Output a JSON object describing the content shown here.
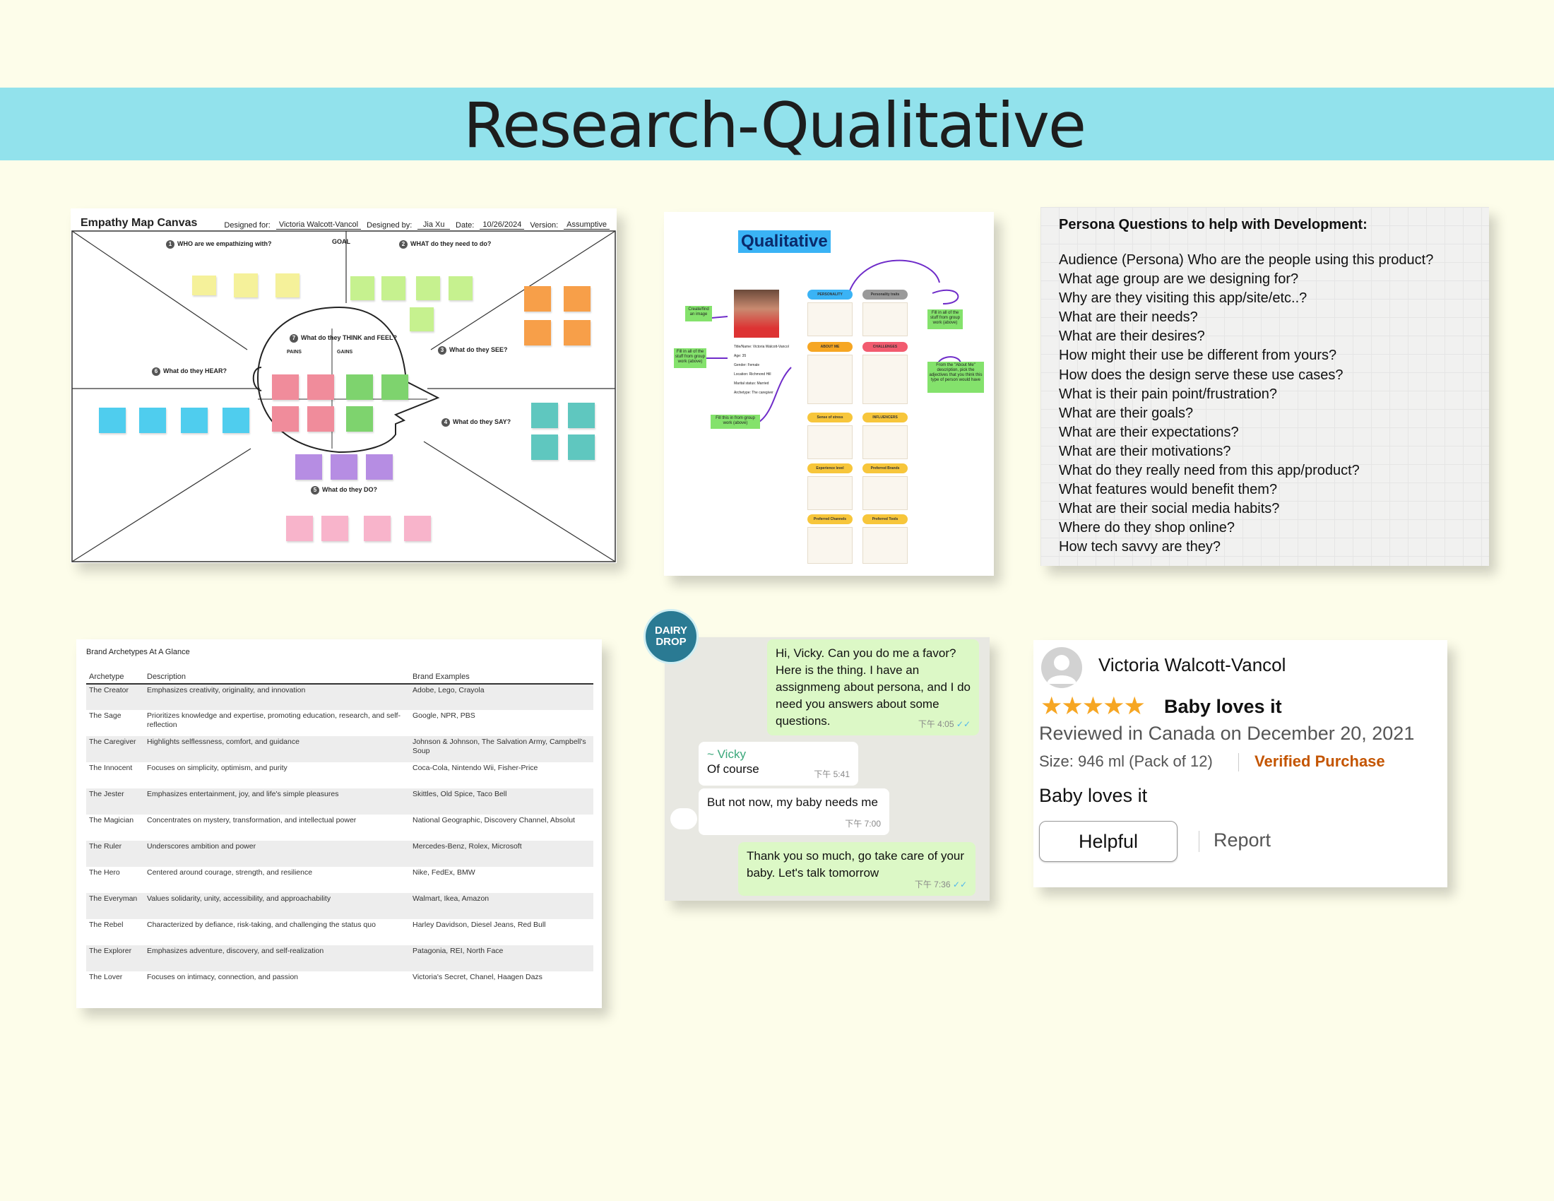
{
  "title": "Research-Qualitative",
  "empathy_map": {
    "title": "Empathy Map Canvas",
    "designed_for_label": "Designed for:",
    "designed_for": "Victoria Walcott-Vancol",
    "designed_by_label": "Designed by:",
    "designed_by": "Jia Xu",
    "date_label": "Date:",
    "date": "10/26/2024",
    "version_label": "Version:",
    "version": "Assumptive",
    "goal": "GOAL",
    "q1": "WHO are we empathizing with?",
    "q2": "WHAT do they need to do?",
    "q3": "What do they SEE?",
    "q4": "What do they SAY?",
    "q5": "What do they DO?",
    "q6": "What do they HEAR?",
    "q7": "What do they THINK and FEEL?",
    "pains": "PAINS",
    "gains": "GAINS"
  },
  "qualitative": {
    "title": "Qualitative",
    "note1": "Create/find an image",
    "note2": "Fill in all of the stuff from group work (above)",
    "note3": "Fill this in from group work (above)",
    "note4": "Fill in all of the stuff from group work (above)",
    "note5": "From the \"About Me\" description, pick the adjectives that you think this type of person would have",
    "pills": [
      "PERSONALITY",
      "ABOUT ME",
      "Sense of stress",
      "Experience level",
      "Preferred Channels",
      "Personality traits",
      "CHALLENGES",
      "INFLUENCERS",
      "Preferred Brands",
      "Preferred Tools"
    ],
    "profile": [
      "Title/Name: Victoria Walcott-Vancol",
      "Age: 35",
      "Gender: Female",
      "Location: Richmond Hill",
      "Marital status: Married",
      "Archetype: The caregiver"
    ]
  },
  "persona": {
    "title": "Persona Questions to help with Development:",
    "questions": [
      "Audience (Persona)  Who are the people using this product?",
      "What age group are we designing for?",
      "Why are they visiting this app/site/etc..?",
      "What are their needs?",
      "What are their desires?",
      "How might their use be different from yours?",
      "How does the design serve these use cases?",
      "What is their pain point/frustration?",
      "What are their goals?",
      "What are their expectations?",
      "What are their motivations?",
      "What do they really need from this app/product?",
      "What features would benefit them?",
      "What are their social media habits?",
      "Where do they shop online?",
      "How tech savvy are they?"
    ]
  },
  "archetypes": {
    "title": "Brand Archetypes At A Glance",
    "columns": [
      "Archetype",
      "Description",
      "Brand Examples"
    ],
    "rows": [
      [
        "The Creator",
        "Emphasizes creativity, originality, and innovation",
        "Adobe, Lego, Crayola"
      ],
      [
        "The Sage",
        "Prioritizes knowledge and expertise, promoting education, research, and self-reflection",
        "Google, NPR, PBS"
      ],
      [
        "The Caregiver",
        "Highlights selflessness, comfort, and guidance",
        "Johnson & Johnson, The Salvation Army, Campbell's Soup"
      ],
      [
        "The Innocent",
        "Focuses on simplicity, optimism, and purity",
        "Coca-Cola, Nintendo Wii, Fisher-Price"
      ],
      [
        "The Jester",
        "Emphasizes entertainment, joy, and life's simple pleasures",
        "Skittles, Old Spice, Taco Bell"
      ],
      [
        "The Magician",
        "Concentrates on mystery, transformation, and intellectual power",
        "National Geographic, Discovery Channel, Absolut"
      ],
      [
        "The Ruler",
        "Underscores ambition and power",
        "Mercedes-Benz, Rolex, Microsoft"
      ],
      [
        "The Hero",
        "Centered around courage, strength, and resilience",
        "Nike, FedEx, BMW"
      ],
      [
        "The Everyman",
        "Values solidarity, unity, accessibility, and approachability",
        "Walmart, Ikea, Amazon"
      ],
      [
        "The Rebel",
        "Characterized by defiance, risk-taking, and challenging the status quo",
        "Harley Davidson, Diesel Jeans, Red Bull"
      ],
      [
        "The Explorer",
        "Emphasizes adventure, discovery, and self-realization",
        "Patagonia, REI, North Face"
      ],
      [
        "The Lover",
        "Focuses on intimacy, connection, and passion",
        "Victoria's Secret, Chanel, Haagen Dazs"
      ]
    ]
  },
  "chat": {
    "logo_line1": "DAIRY",
    "logo_line2": "DROP",
    "m1": "Hi, Vicky. Can you do me a favor? Here is the thing. I have an assignmeng about persona, and I do need you answers about some questions.",
    "m1_time": "下午 4:05",
    "m2_name": "~ Vicky",
    "m2": "Of course",
    "m2_time": "下午 5:41",
    "m3": "But not now, my baby needs me",
    "m3_time": "下午 7:00",
    "m4": "Thank you so much, go take care of your baby. Let's talk tomorrow",
    "m4_time": "下午 7:36"
  },
  "review": {
    "name": "Victoria Walcott-Vancol",
    "stars": "★★★★★",
    "rating": 5,
    "title": "Baby loves it",
    "reviewed": "Reviewed in Canada on December 20, 2021",
    "size": "Size: 946 ml (Pack of 12)",
    "verified": "Verified Purchase",
    "body": "Baby loves it",
    "helpful": "Helpful",
    "report": "Report",
    "star_color": "#f6a623",
    "verified_color": "#c45500"
  }
}
